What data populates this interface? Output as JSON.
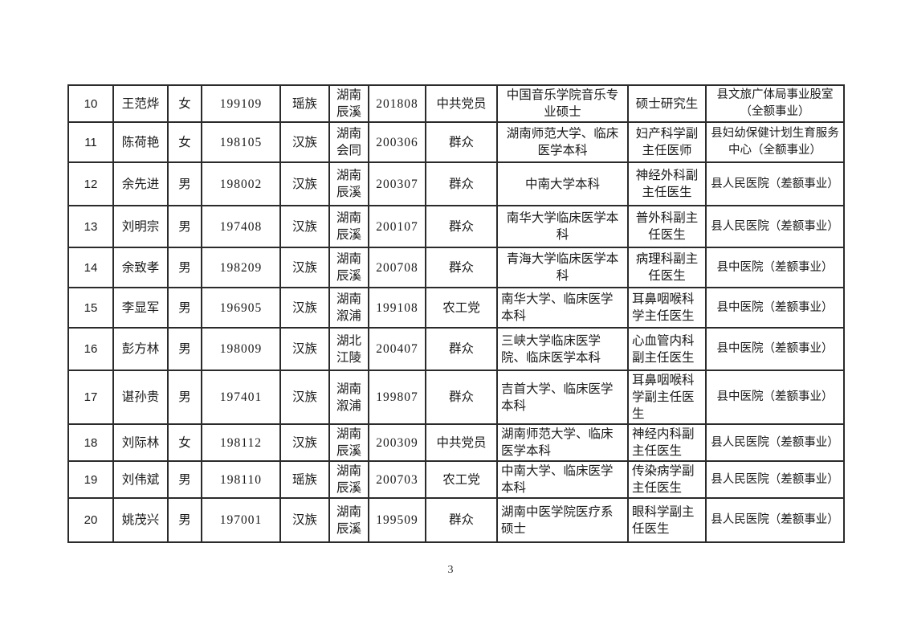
{
  "page": {
    "number": "3"
  },
  "table": {
    "rows": [
      [
        "10",
        "王范烨",
        "女",
        "199109",
        "瑶族",
        "湖南辰溪",
        "201808",
        "中共党员",
        "中国音乐学院音乐专业硕士",
        "硕士研究生",
        "县文旅广体局事业股室（全额事业）"
      ],
      [
        "11",
        "陈荷艳",
        "女",
        "198105",
        "汉族",
        "湖南会同",
        "200306",
        "群众",
        "湖南师范大学、临床医学本科",
        "妇产科学副主任医师",
        "县妇幼保健计划生育服务中心（全额事业）"
      ],
      [
        "12",
        "余先进",
        "男",
        "198002",
        "汉族",
        "湖南辰溪",
        "200307",
        "群众",
        "中南大学本科",
        "神经外科副主任医生",
        "县人民医院（差额事业）"
      ],
      [
        "13",
        "刘明宗",
        "男",
        "197408",
        "汉族",
        "湖南辰溪",
        "200107",
        "群众",
        "南华大学临床医学本科",
        "普外科副主任医生",
        "县人民医院（差额事业）"
      ],
      [
        "14",
        "余致孝",
        "男",
        "198209",
        "汉族",
        "湖南辰溪",
        "200708",
        "群众",
        "青海大学临床医学本科",
        "病理科副主任医生",
        "县中医院（差额事业）"
      ],
      [
        "15",
        "李显军",
        "男",
        "196905",
        "汉族",
        "湖南溆浦",
        "199108",
        "农工党",
        "南华大学、临床医学本科",
        "耳鼻咽喉科学主任医生",
        "县中医院（差额事业）"
      ],
      [
        "16",
        "彭方林",
        "男",
        "198009",
        "汉族",
        "湖北江陵",
        "200407",
        "群众",
        "三峡大学临床医学院、临床医学本科",
        "心血管内科副主任医生",
        "县中医院（差额事业）"
      ],
      [
        "17",
        "谌孙贵",
        "男",
        "197401",
        "汉族",
        "湖南溆浦",
        "199807",
        "群众",
        "吉首大学、临床医学本科",
        "耳鼻咽喉科学副主任医生",
        "县中医院（差额事业）"
      ],
      [
        "18",
        "刘际林",
        "女",
        "198112",
        "汉族",
        "湖南辰溪",
        "200309",
        "中共党员",
        "湖南师范大学、临床医学本科",
        "神经内科副主任医生",
        "县人民医院（差额事业）"
      ],
      [
        "19",
        "刘伟斌",
        "男",
        "198110",
        "瑶族",
        "湖南辰溪",
        "200703",
        "农工党",
        "中南大学、临床医学本科",
        "传染病学副主任医生",
        "县人民医院（差额事业）"
      ],
      [
        "20",
        "姚茂兴",
        "男",
        "197001",
        "汉族",
        "湖南辰溪",
        "199509",
        "群众",
        "湖南中医学院医疗系硕士",
        "眼科学副主任医生",
        "县人民医院（差额事业）"
      ]
    ]
  }
}
